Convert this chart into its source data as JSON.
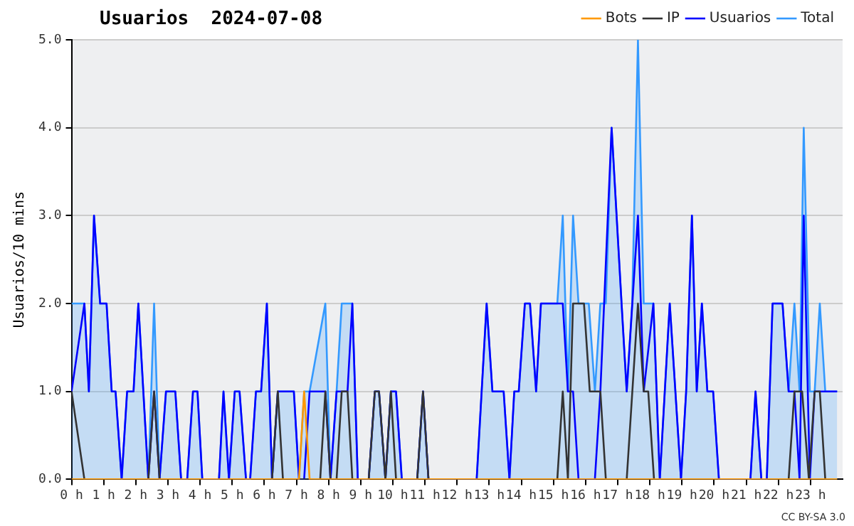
{
  "chart_data": {
    "type": "line",
    "title": "Usuarios  2024-07-08",
    "ylabel": "Usuarios/10 mins",
    "xlim": [
      0,
      24
    ],
    "ylim": [
      0,
      5
    ],
    "xticks": [
      {
        "value": 0,
        "label": "0 h"
      },
      {
        "value": 1,
        "label": "1 h"
      },
      {
        "value": 2,
        "label": "2 h"
      },
      {
        "value": 3,
        "label": "3 h"
      },
      {
        "value": 4,
        "label": "4 h"
      },
      {
        "value": 5,
        "label": "5 h"
      },
      {
        "value": 6,
        "label": "6 h"
      },
      {
        "value": 7,
        "label": "7 h"
      },
      {
        "value": 8,
        "label": "8 h"
      },
      {
        "value": 9,
        "label": "9 h"
      },
      {
        "value": 10,
        "label": "10 h"
      },
      {
        "value": 11,
        "label": "11 h"
      },
      {
        "value": 12,
        "label": "12 h"
      },
      {
        "value": 13,
        "label": "13 h"
      },
      {
        "value": 14,
        "label": "14 h"
      },
      {
        "value": 15,
        "label": "15 h"
      },
      {
        "value": 16,
        "label": "16 h"
      },
      {
        "value": 17,
        "label": "17 h"
      },
      {
        "value": 18,
        "label": "18 h"
      },
      {
        "value": 19,
        "label": "19 h"
      },
      {
        "value": 20,
        "label": "20 h"
      },
      {
        "value": 21,
        "label": "21 h"
      },
      {
        "value": 22,
        "label": "22 h"
      },
      {
        "value": 23,
        "label": "23 h"
      }
    ],
    "yticks": [
      {
        "value": 0,
        "label": "0.0"
      },
      {
        "value": 1,
        "label": "1.0"
      },
      {
        "value": 2,
        "label": "2.0"
      },
      {
        "value": 3,
        "label": "3.0"
      },
      {
        "value": 4,
        "label": "4.0"
      },
      {
        "value": 5,
        "label": "5.0"
      }
    ],
    "grid": "y",
    "legend": "top right",
    "marker": "none",
    "line_style": "solid",
    "annotations": [
      "CC BY-SA 3.0"
    ],
    "series": [
      {
        "name": "Total",
        "type": "area",
        "color": "#3399ff",
        "x": [
          0,
          0.4,
          0.54,
          0.7,
          0.89,
          1.09,
          1.25,
          1.37,
          1.56,
          1.73,
          1.93,
          2.08,
          2.39,
          2.57,
          2.74,
          2.94,
          3.23,
          3.41,
          3.6,
          3.78,
          3.92,
          4.07,
          4.59,
          4.73,
          4.9,
          5.08,
          5.23,
          5.43,
          5.56,
          5.74,
          5.9,
          6.08,
          6.24,
          6.42,
          6.92,
          7.08,
          7.24,
          7.41,
          7.9,
          8.06,
          8.25,
          8.41,
          8.74,
          8.91,
          9.25,
          9.44,
          9.57,
          9.77,
          9.94,
          10.1,
          10.28,
          10.76,
          10.94,
          11.11,
          12.61,
          12.92,
          13.1,
          13.45,
          13.63,
          13.78,
          13.92,
          14.11,
          14.27,
          14.46,
          14.61,
          15.12,
          15.29,
          15.45,
          15.61,
          15.78,
          16.1,
          16.29,
          16.46,
          16.63,
          16.81,
          17.12,
          17.28,
          17.45,
          17.63,
          17.81,
          18.11,
          18.31,
          18.62,
          18.97,
          19.13,
          19.31,
          19.46,
          19.62,
          19.79,
          19.97,
          20.15,
          21.13,
          21.29,
          21.47,
          21.64,
          21.82,
          22.13,
          22.32,
          22.5,
          22.66,
          22.79,
          22.98,
          23.13,
          23.29,
          23.46,
          23.83
        ],
        "values": [
          2,
          2,
          1,
          3,
          2,
          2,
          1,
          1,
          0,
          1,
          1,
          2,
          0,
          2,
          0,
          1,
          1,
          0,
          0,
          1,
          1,
          0,
          0,
          1,
          0,
          1,
          1,
          0,
          0,
          1,
          1,
          2,
          0,
          1,
          1,
          0,
          1,
          1,
          2,
          0,
          1,
          2,
          2,
          0,
          0,
          1,
          1,
          0,
          1,
          1,
          0,
          0,
          1,
          0,
          0,
          2,
          1,
          1,
          0,
          1,
          1,
          2,
          2,
          1,
          2,
          2,
          3,
          1,
          3,
          2,
          2,
          1,
          2,
          2,
          4,
          2,
          1,
          2,
          5,
          2,
          2,
          0,
          2,
          0,
          1,
          3,
          1,
          2,
          1,
          1,
          0,
          0,
          1,
          0,
          0,
          2,
          2,
          1,
          2,
          1,
          4,
          1,
          1,
          2,
          1,
          1
        ]
      },
      {
        "name": "Usuarios",
        "color": "#0000ff",
        "x": [
          0,
          0.4,
          0.54,
          0.7,
          0.89,
          1.09,
          1.25,
          1.37,
          1.56,
          1.73,
          1.93,
          2.08,
          2.39,
          2.57,
          2.74,
          2.94,
          3.23,
          3.41,
          3.6,
          3.78,
          3.92,
          4.07,
          4.59,
          4.73,
          4.9,
          5.08,
          5.23,
          5.43,
          5.56,
          5.74,
          5.9,
          6.08,
          6.24,
          6.42,
          6.92,
          7.08,
          7.24,
          7.41,
          7.9,
          8.06,
          8.25,
          8.59,
          8.74,
          8.91,
          9.25,
          9.44,
          9.57,
          9.77,
          9.94,
          10.1,
          10.28,
          10.76,
          10.94,
          11.11,
          12.61,
          12.92,
          13.1,
          13.45,
          13.63,
          13.78,
          13.92,
          14.11,
          14.27,
          14.46,
          14.61,
          15.29,
          15.45,
          15.61,
          15.78,
          16.29,
          16.46,
          16.81,
          17.12,
          17.28,
          17.63,
          17.81,
          18.11,
          18.31,
          18.62,
          18.97,
          19.13,
          19.31,
          19.46,
          19.62,
          19.79,
          19.97,
          20.15,
          21.13,
          21.29,
          21.47,
          21.64,
          21.82,
          22.13,
          22.32,
          22.5,
          22.66,
          22.79,
          22.98,
          23.13,
          23.83
        ],
        "values": [
          1,
          2,
          1,
          3,
          2,
          2,
          1,
          1,
          0,
          1,
          1,
          2,
          0,
          1,
          0,
          1,
          1,
          0,
          0,
          1,
          1,
          0,
          0,
          1,
          0,
          1,
          1,
          0,
          0,
          1,
          1,
          2,
          0,
          1,
          1,
          0,
          0,
          1,
          1,
          0,
          1,
          1,
          2,
          0,
          0,
          1,
          1,
          0,
          1,
          1,
          0,
          0,
          1,
          0,
          0,
          2,
          1,
          1,
          0,
          1,
          1,
          2,
          2,
          1,
          2,
          2,
          1,
          1,
          0,
          0,
          1,
          4,
          2,
          1,
          3,
          1,
          2,
          0,
          2,
          0,
          1,
          3,
          1,
          2,
          1,
          1,
          0,
          0,
          1,
          0,
          0,
          2,
          2,
          1,
          1,
          0,
          3,
          0,
          1,
          1
        ]
      },
      {
        "name": "IP",
        "color": "#333333",
        "x": [
          0,
          0.4,
          2.39,
          2.57,
          2.74,
          6.24,
          6.42,
          6.58,
          7.74,
          7.9,
          8.06,
          8.25,
          8.41,
          8.59,
          8.74,
          9.25,
          9.44,
          9.57,
          9.77,
          9.94,
          10.1,
          10.76,
          10.94,
          11.11,
          15.12,
          15.29,
          15.45,
          15.61,
          15.95,
          16.13,
          16.46,
          16.63,
          17.28,
          17.63,
          17.81,
          17.95,
          18.13,
          22.32,
          22.5,
          22.74,
          22.95,
          23.13,
          23.29,
          23.46,
          23.83
        ],
        "values": [
          1,
          0,
          0,
          1,
          0,
          0,
          1,
          0,
          0,
          1,
          0,
          0,
          1,
          1,
          0,
          0,
          1,
          1,
          0,
          1,
          0,
          0,
          1,
          0,
          0,
          1,
          0,
          2,
          2,
          1,
          1,
          0,
          0,
          2,
          1,
          1,
          0,
          0,
          1,
          1,
          0,
          1,
          1,
          0,
          0
        ]
      },
      {
        "name": "Bots",
        "color": "#ff9900",
        "x": [
          0,
          7.08,
          7.24,
          7.41,
          23.83
        ],
        "values": [
          0,
          0,
          1,
          0,
          0
        ]
      }
    ]
  }
}
